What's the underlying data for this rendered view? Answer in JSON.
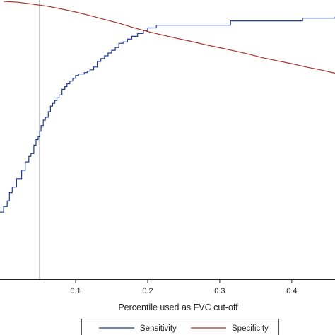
{
  "chart_data": {
    "type": "line",
    "title": "",
    "xlabel": "Percentile used as FVC cut-off",
    "ylabel": "",
    "xlim": [
      -0.005,
      0.46
    ],
    "ylim": [
      0.0,
      1.0
    ],
    "x_ticks": [
      {
        "value": 0.1,
        "label": "0.1"
      },
      {
        "value": 0.2,
        "label": "0.2"
      },
      {
        "value": 0.3,
        "label": "0.3"
      },
      {
        "value": 0.4,
        "label": "0.4"
      }
    ],
    "reference_line": {
      "x": 0.05,
      "color": "#808080"
    },
    "grid": false,
    "legend": {
      "placement": "bottom",
      "entries": [
        "Sensitivity",
        "Specificity"
      ]
    },
    "series": [
      {
        "name": "Sensitivity",
        "color": "#1f3a93",
        "step": true,
        "x": [
          -0.005,
          0.0,
          0.005,
          0.008,
          0.012,
          0.018,
          0.025,
          0.03,
          0.035,
          0.038,
          0.042,
          0.045,
          0.048,
          0.05,
          0.052,
          0.055,
          0.058,
          0.062,
          0.065,
          0.068,
          0.071,
          0.074,
          0.077,
          0.081,
          0.085,
          0.088,
          0.092,
          0.096,
          0.1,
          0.104,
          0.108,
          0.112,
          0.116,
          0.12,
          0.125,
          0.13,
          0.135,
          0.14,
          0.145,
          0.15,
          0.155,
          0.16,
          0.166,
          0.172,
          0.178,
          0.186,
          0.194,
          0.2,
          0.206,
          0.212,
          0.25,
          0.3,
          0.31,
          0.315,
          0.35,
          0.41,
          0.415,
          0.42,
          0.46
        ],
        "y": [
          0.24,
          0.26,
          0.28,
          0.31,
          0.33,
          0.36,
          0.39,
          0.42,
          0.44,
          0.45,
          0.48,
          0.5,
          0.51,
          0.53,
          0.55,
          0.57,
          0.58,
          0.6,
          0.62,
          0.63,
          0.64,
          0.65,
          0.66,
          0.68,
          0.69,
          0.7,
          0.71,
          0.72,
          0.73,
          0.735,
          0.735,
          0.74,
          0.745,
          0.75,
          0.76,
          0.78,
          0.79,
          0.8,
          0.81,
          0.82,
          0.83,
          0.845,
          0.85,
          0.86,
          0.87,
          0.88,
          0.89,
          0.9,
          0.9,
          0.91,
          0.91,
          0.91,
          0.91,
          0.925,
          0.925,
          0.925,
          0.935,
          0.935,
          0.94
        ]
      },
      {
        "name": "Specificity",
        "color": "#a8322d",
        "step": false,
        "x": [
          0.0,
          0.02,
          0.04,
          0.06,
          0.08,
          0.1,
          0.12,
          0.14,
          0.16,
          0.18,
          0.2,
          0.22,
          0.24,
          0.26,
          0.28,
          0.3,
          0.32,
          0.34,
          0.36,
          0.38,
          0.4,
          0.42,
          0.44,
          0.46
        ],
        "y": [
          0.995,
          0.992,
          0.985,
          0.978,
          0.968,
          0.957,
          0.944,
          0.93,
          0.917,
          0.901,
          0.887,
          0.875,
          0.863,
          0.852,
          0.84,
          0.829,
          0.818,
          0.806,
          0.793,
          0.782,
          0.772,
          0.76,
          0.75,
          0.738
        ]
      }
    ]
  }
}
